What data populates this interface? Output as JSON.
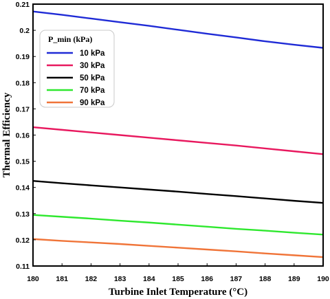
{
  "chart_data": {
    "type": "line",
    "xlabel": "Turbine Inlet Temperature (°C)",
    "ylabel": "Thermal Efficiency",
    "xlim": [
      180,
      190
    ],
    "ylim": [
      0.11,
      0.21
    ],
    "xticks": [
      "180",
      "181",
      "182",
      "183",
      "184",
      "185",
      "186",
      "187",
      "188",
      "189",
      "190"
    ],
    "yticks": [
      "0.11",
      "0.12",
      "0.13",
      "0.14",
      "0.15",
      "0.16",
      "0.17",
      "0.18",
      "0.19",
      "0.2",
      "0.21"
    ],
    "legend": {
      "title": "P_min (kPa)",
      "position": "top-left"
    },
    "grid": false,
    "x": [
      180,
      181,
      182,
      183,
      184,
      185,
      186,
      187,
      188,
      189,
      190
    ],
    "series": [
      {
        "name": "10 kPa",
        "color": "#1f2bd6",
        "values": [
          0.2072,
          0.2059,
          0.2045,
          0.2031,
          0.2017,
          0.2002,
          0.1987,
          0.1973,
          0.1958,
          0.1945,
          0.1933
        ]
      },
      {
        "name": "30 kPa",
        "color": "#e8185e",
        "values": [
          0.163,
          0.162,
          0.161,
          0.16,
          0.159,
          0.158,
          0.157,
          0.156,
          0.1549,
          0.1538,
          0.1527
        ]
      },
      {
        "name": "50 kPa",
        "color": "#000000",
        "values": [
          0.1425,
          0.1416,
          0.1408,
          0.14,
          0.1392,
          0.1384,
          0.1375,
          0.1367,
          0.1358,
          0.1349,
          0.1341
        ]
      },
      {
        "name": "70 kPa",
        "color": "#2ee82e",
        "values": [
          0.1295,
          0.1288,
          0.1281,
          0.1273,
          0.1266,
          0.1258,
          0.125,
          0.1242,
          0.1235,
          0.1227,
          0.122
        ]
      },
      {
        "name": "90 kPa",
        "color": "#f07438",
        "values": [
          0.1203,
          0.1196,
          0.119,
          0.1184,
          0.1177,
          0.117,
          0.1163,
          0.1156,
          0.1148,
          0.1141,
          0.1134
        ]
      }
    ]
  }
}
